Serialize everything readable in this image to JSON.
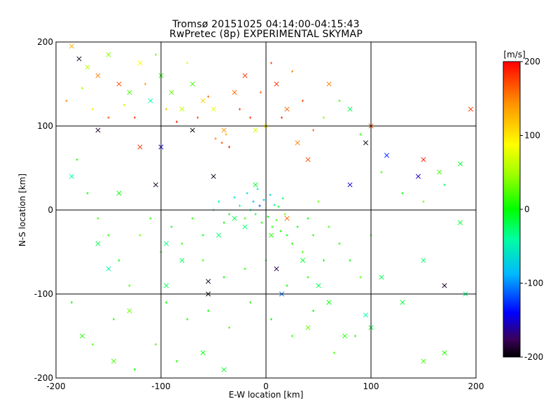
{
  "chart_data": {
    "type": "scatter",
    "title": "Tromsø 20151025 04:14:00-04:15:43",
    "subtitle": "RwPretec (8p) EXPERIMENTAL SKYMAP",
    "xlabel": "E-W location [km]",
    "ylabel": "N-S location [km]",
    "xlim": [
      -200,
      200
    ],
    "ylim": [
      -200,
      200
    ],
    "grid": true,
    "xticks": [
      "-200",
      "-100",
      "0",
      "100",
      "200"
    ],
    "yticks": [
      "-200",
      "-100",
      "0",
      "100",
      "200"
    ],
    "colorbar": {
      "label": "[m/s]",
      "range": [
        -200,
        200
      ],
      "ticks": [
        "200",
        "100",
        "0",
        "-100",
        "-200"
      ],
      "colormap": "rainbow"
    },
    "series": [
      {
        "marker": "x",
        "points": [
          [
            -185,
            195,
            130
          ],
          [
            -178,
            180,
            -190
          ],
          [
            -170,
            170,
            60
          ],
          [
            -160,
            160,
            150
          ],
          [
            -150,
            185,
            40
          ],
          [
            -140,
            150,
            170
          ],
          [
            -130,
            140,
            20
          ],
          [
            -120,
            175,
            90
          ],
          [
            -110,
            130,
            -40
          ],
          [
            -100,
            160,
            10
          ],
          [
            -90,
            140,
            30
          ],
          [
            -80,
            120,
            60
          ],
          [
            -70,
            150,
            20
          ],
          [
            -60,
            130,
            110
          ],
          [
            -50,
            120,
            80
          ],
          [
            -40,
            95,
            140
          ],
          [
            -30,
            140,
            160
          ],
          [
            -20,
            160,
            180
          ],
          [
            -10,
            95,
            70
          ],
          [
            0,
            100,
            90
          ],
          [
            10,
            150,
            180
          ],
          [
            20,
            120,
            160
          ],
          [
            30,
            80,
            150
          ],
          [
            40,
            60,
            170
          ],
          [
            60,
            150,
            150
          ],
          [
            80,
            120,
            -20
          ],
          [
            100,
            100,
            170
          ],
          [
            115,
            65,
            -130
          ],
          [
            145,
            40,
            -150
          ],
          [
            150,
            60,
            190
          ],
          [
            165,
            45,
            20
          ],
          [
            185,
            55,
            -10
          ],
          [
            195,
            120,
            180
          ],
          [
            -185,
            40,
            -40
          ],
          [
            -160,
            -40,
            -20
          ],
          [
            -150,
            -70,
            -40
          ],
          [
            -140,
            20,
            0
          ],
          [
            -130,
            -120,
            30
          ],
          [
            -120,
            75,
            180
          ],
          [
            -105,
            30,
            -190
          ],
          [
            -95,
            -40,
            -30
          ],
          [
            -80,
            -60,
            -20
          ],
          [
            -55,
            -100,
            -200
          ],
          [
            -55,
            -85,
            -190
          ],
          [
            -50,
            40,
            -190
          ],
          [
            -45,
            -30,
            -30
          ],
          [
            -30,
            -10,
            -20
          ],
          [
            -20,
            -20,
            -30
          ],
          [
            -10,
            30,
            -10
          ],
          [
            5,
            -30,
            10
          ],
          [
            10,
            -70,
            -180
          ],
          [
            15,
            -100,
            -110
          ],
          [
            20,
            -10,
            160
          ],
          [
            35,
            -60,
            -10
          ],
          [
            50,
            -90,
            -20
          ],
          [
            60,
            -110,
            0
          ],
          [
            75,
            -150,
            10
          ],
          [
            95,
            -125,
            -40
          ],
          [
            110,
            -80,
            -20
          ],
          [
            130,
            -110,
            -10
          ],
          [
            150,
            -60,
            -30
          ],
          [
            170,
            -90,
            -190
          ],
          [
            185,
            -15,
            -10
          ],
          [
            190,
            -100,
            -30
          ],
          [
            -175,
            -150,
            10
          ],
          [
            -145,
            -180,
            20
          ],
          [
            -95,
            -90,
            -20
          ],
          [
            -60,
            -170,
            0
          ],
          [
            -40,
            -190,
            -10
          ],
          [
            40,
            -140,
            30
          ],
          [
            100,
            -140,
            -10
          ],
          [
            150,
            -180,
            20
          ],
          [
            170,
            -170,
            10
          ],
          [
            95,
            80,
            -195
          ],
          [
            80,
            30,
            -150
          ],
          [
            -160,
            95,
            -190
          ],
          [
            -70,
            95,
            -195
          ],
          [
            -100,
            75,
            -150
          ]
        ]
      },
      {
        "marker": "+",
        "points": [
          [
            -190,
            130,
            150
          ],
          [
            -175,
            145,
            50
          ],
          [
            -165,
            120,
            100
          ],
          [
            -150,
            110,
            170
          ],
          [
            -135,
            125,
            60
          ],
          [
            -125,
            110,
            180
          ],
          [
            -115,
            150,
            140
          ],
          [
            -105,
            185,
            30
          ],
          [
            -95,
            120,
            120
          ],
          [
            -85,
            105,
            190
          ],
          [
            -75,
            175,
            80
          ],
          [
            -65,
            110,
            170
          ],
          [
            -55,
            135,
            160
          ],
          [
            -48,
            85,
            150
          ],
          [
            -42,
            80,
            170
          ],
          [
            -38,
            90,
            130
          ],
          [
            -35,
            75,
            190
          ],
          [
            -25,
            120,
            175
          ],
          [
            -15,
            110,
            180
          ],
          [
            -5,
            140,
            160
          ],
          [
            5,
            175,
            170
          ],
          [
            15,
            110,
            185
          ],
          [
            25,
            165,
            150
          ],
          [
            35,
            130,
            175
          ],
          [
            45,
            95,
            160
          ],
          [
            55,
            110,
            40
          ],
          [
            70,
            130,
            20
          ],
          [
            90,
            90,
            10
          ],
          [
            110,
            45,
            20
          ],
          [
            130,
            20,
            0
          ],
          [
            150,
            10,
            30
          ],
          [
            170,
            30,
            -20
          ],
          [
            -180,
            60,
            10
          ],
          [
            -170,
            20,
            0
          ],
          [
            -160,
            -10,
            20
          ],
          [
            -150,
            -30,
            10
          ],
          [
            -140,
            -60,
            0
          ],
          [
            -130,
            -90,
            20
          ],
          [
            -120,
            -30,
            30
          ],
          [
            -110,
            -10,
            10
          ],
          [
            -100,
            -50,
            0
          ],
          [
            -90,
            -20,
            -10
          ],
          [
            -80,
            -40,
            20
          ],
          [
            -70,
            -10,
            10
          ],
          [
            -60,
            -30,
            0
          ],
          [
            -50,
            0,
            -20
          ],
          [
            -45,
            10,
            -40
          ],
          [
            -40,
            -15,
            0
          ],
          [
            -35,
            -5,
            -10
          ],
          [
            -30,
            15,
            -60
          ],
          [
            -25,
            5,
            -30
          ],
          [
            -20,
            -10,
            20
          ],
          [
            -18,
            20,
            -70
          ],
          [
            -15,
            0,
            -40
          ],
          [
            -12,
            10,
            -90
          ],
          [
            -10,
            -5,
            -20
          ],
          [
            -8,
            25,
            -50
          ],
          [
            -6,
            5,
            -120
          ],
          [
            -4,
            -15,
            10
          ],
          [
            -2,
            12,
            -80
          ],
          [
            0,
            0,
            -30
          ],
          [
            2,
            -8,
            0
          ],
          [
            4,
            18,
            -60
          ],
          [
            6,
            -20,
            10
          ],
          [
            8,
            6,
            -40
          ],
          [
            10,
            -12,
            20
          ],
          [
            12,
            4,
            -10
          ],
          [
            14,
            -25,
            0
          ],
          [
            16,
            14,
            -30
          ],
          [
            18,
            -5,
            30
          ],
          [
            20,
            -30,
            0
          ],
          [
            25,
            -40,
            10
          ],
          [
            30,
            -20,
            -10
          ],
          [
            35,
            -50,
            20
          ],
          [
            40,
            -10,
            0
          ],
          [
            45,
            -30,
            10
          ],
          [
            50,
            10,
            30
          ],
          [
            55,
            -60,
            0
          ],
          [
            60,
            -20,
            20
          ],
          [
            70,
            -40,
            10
          ],
          [
            80,
            -60,
            0
          ],
          [
            90,
            -80,
            20
          ],
          [
            100,
            -30,
            10
          ],
          [
            -95,
            -110,
            0
          ],
          [
            -75,
            -130,
            10
          ],
          [
            -55,
            -120,
            0
          ],
          [
            -35,
            -140,
            20
          ],
          [
            -15,
            -110,
            10
          ],
          [
            5,
            -130,
            0
          ],
          [
            25,
            -150,
            10
          ],
          [
            45,
            -120,
            0
          ],
          [
            65,
            -170,
            20
          ],
          [
            85,
            -150,
            10
          ],
          [
            -165,
            -160,
            20
          ],
          [
            -145,
            -130,
            10
          ],
          [
            -125,
            -190,
            0
          ],
          [
            -105,
            -160,
            20
          ],
          [
            -85,
            -180,
            10
          ],
          [
            -185,
            -110,
            0
          ],
          [
            0,
            -60,
            -10
          ],
          [
            -20,
            -70,
            10
          ],
          [
            -40,
            -80,
            0
          ],
          [
            -60,
            -60,
            20
          ],
          [
            20,
            -90,
            0
          ],
          [
            40,
            -80,
            10
          ]
        ]
      }
    ]
  }
}
